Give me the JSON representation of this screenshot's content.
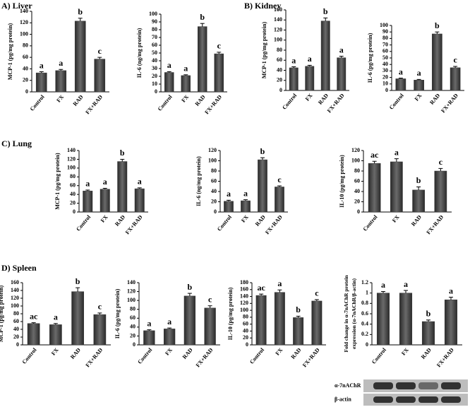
{
  "chart_data": [
    {
      "type": "bar",
      "panel": "A) Liver",
      "ylabel": [
        "MCP-1  (pg/mg protein)"
      ],
      "categories": [
        "Control",
        "FX",
        "RAD",
        "FX+RAD"
      ],
      "values": [
        33,
        37,
        123,
        57
      ],
      "errors": [
        2,
        2,
        5,
        3
      ],
      "bar_labels": [
        "a",
        "a",
        "b",
        "c"
      ],
      "color": "#3a3a3a",
      "ylim": [
        0,
        140
      ],
      "yticks": [
        0,
        20,
        40,
        60,
        80,
        100,
        120,
        140
      ]
    },
    {
      "type": "bar",
      "ylabel": [
        "IL-6  (ng/mg protein)"
      ],
      "categories": [
        "Control",
        "FX",
        "RAD",
        "FX+RAD"
      ],
      "values": [
        25,
        21,
        84,
        49
      ],
      "errors": [
        1,
        1,
        4,
        2
      ],
      "bar_labels": [
        "a",
        "a",
        "b",
        "c"
      ],
      "color": "#3a3a3a",
      "ylim": [
        0,
        100
      ],
      "yticks": [
        0,
        10,
        20,
        30,
        40,
        50,
        60,
        70,
        80,
        90,
        100
      ]
    },
    {
      "type": "bar",
      "panel": "B) Kidney",
      "ylabel": [
        "MCP-1  (pg/mg protein)"
      ],
      "categories": [
        "Control",
        "FX",
        "RAD",
        "FX+RAD"
      ],
      "values": [
        45,
        48,
        138,
        65
      ],
      "errors": [
        2,
        2,
        6,
        3
      ],
      "bar_labels": [
        "a",
        "a",
        "b",
        "a"
      ],
      "color": "#3a3a3a",
      "ylim": [
        0,
        160
      ],
      "yticks": [
        0,
        20,
        40,
        60,
        80,
        100,
        120,
        140,
        160
      ]
    },
    {
      "type": "bar",
      "ylabel": [
        "IL-6  (pg/mg protein)"
      ],
      "categories": [
        "Control",
        "FX",
        "RAD",
        "FX+RAD"
      ],
      "values": [
        18,
        16,
        87,
        35
      ],
      "errors": [
        1,
        1,
        3,
        2
      ],
      "bar_labels": [
        "a",
        "a",
        "b",
        "c"
      ],
      "color": "#3a3a3a",
      "ylim": [
        0,
        100
      ],
      "yticks": [
        0,
        10,
        20,
        30,
        40,
        50,
        60,
        70,
        80,
        90,
        100
      ]
    },
    {
      "type": "bar",
      "panel": "C) Lung",
      "ylabel": [
        "MCP-1 (pg/mg protein)"
      ],
      "categories": [
        "Control",
        "FX",
        "RAD",
        "FX+RAD"
      ],
      "values": [
        48,
        52,
        115,
        53
      ],
      "errors": [
        2,
        2,
        5,
        2
      ],
      "bar_labels": [
        "a",
        "a",
        "b",
        "a"
      ],
      "color": "#3a3a3a",
      "ylim": [
        0,
        140
      ],
      "yticks": [
        0,
        20,
        40,
        60,
        80,
        100,
        120,
        140
      ]
    },
    {
      "type": "bar",
      "ylabel": [
        "IL-6 (ng/mg protein)"
      ],
      "categories": [
        "Control",
        "FX",
        "RAD",
        "FX+RAD"
      ],
      "values": [
        21,
        22,
        102,
        49
      ],
      "errors": [
        2,
        2,
        4,
        2
      ],
      "bar_labels": [
        "a",
        "a",
        "b",
        "c"
      ],
      "color": "#3a3a3a",
      "ylim": [
        0,
        120
      ],
      "yticks": [
        0,
        20,
        40,
        60,
        80,
        100,
        120
      ]
    },
    {
      "type": "bar",
      "ylabel": [
        "IL-10 (pg/mg protein)"
      ],
      "categories": [
        "Control",
        "FX",
        "RAD",
        "FX+RAD"
      ],
      "values": [
        95,
        98,
        43,
        80
      ],
      "errors": [
        4,
        6,
        6,
        5
      ],
      "bar_labels": [
        "ac",
        "a",
        "b",
        "c"
      ],
      "color": "#3a3a3a",
      "ylim": [
        0,
        120
      ],
      "yticks": [
        0,
        20,
        40,
        60,
        80,
        100,
        120
      ]
    },
    {
      "type": "bar",
      "panel": "D) Spleen",
      "ylabel": [
        "MCP-1 (pg/mg protein)"
      ],
      "categories": [
        "Control",
        "FX",
        "RAD",
        "FX+RAD"
      ],
      "values": [
        55,
        52,
        137,
        78
      ],
      "errors": [
        2,
        3,
        10,
        4
      ],
      "bar_labels": [
        "ac",
        "a",
        "b",
        "c"
      ],
      "color": "#3a3a3a",
      "ylim": [
        0,
        160
      ],
      "yticks": [
        0,
        20,
        40,
        60,
        80,
        100,
        120,
        140,
        160
      ]
    },
    {
      "type": "bar",
      "ylabel": [
        "IL-6 (pg/mg protein)"
      ],
      "categories": [
        "Control",
        "FX",
        "RAD",
        "FX+RAD"
      ],
      "values": [
        32,
        36,
        110,
        83
      ],
      "errors": [
        2,
        2,
        6,
        5
      ],
      "bar_labels": [
        "a",
        "a",
        "b",
        "c"
      ],
      "color": "#3a3a3a",
      "ylim": [
        0,
        140
      ],
      "yticks": [
        0,
        20,
        40,
        60,
        80,
        100,
        120,
        140
      ]
    },
    {
      "type": "bar",
      "ylabel": [
        "IL-10 (pg/mg protein)"
      ],
      "categories": [
        "Control",
        "FX",
        "RAD",
        "FX+RAD"
      ],
      "values": [
        143,
        152,
        79,
        127
      ],
      "errors": [
        4,
        7,
        4,
        4
      ],
      "bar_labels": [
        "ac",
        "a",
        "b",
        "c"
      ],
      "color": "#3a3a3a",
      "ylim": [
        0,
        180
      ],
      "yticks": [
        0,
        20,
        40,
        60,
        80,
        100,
        120,
        140,
        160,
        180
      ]
    },
    {
      "type": "bar",
      "ylabel": [
        "Fold change in α-7nAChR protein",
        "expression (α-7nAChR/β-actin)"
      ],
      "categories": [
        "Control",
        "FX",
        "RAD",
        "FX+RAD"
      ],
      "values": [
        1.0,
        1.0,
        0.45,
        0.87
      ],
      "errors": [
        0.03,
        0.05,
        0.03,
        0.05
      ],
      "bar_labels": [
        "a",
        "a",
        "b",
        "a"
      ],
      "color": "#3a3a3a",
      "ylim": [
        0,
        1.2
      ],
      "yticks": [
        0,
        0.2,
        0.4,
        0.6,
        0.8,
        1,
        1.2
      ],
      "blot_labels": [
        "α-7nAChR",
        "β-actin"
      ]
    }
  ]
}
